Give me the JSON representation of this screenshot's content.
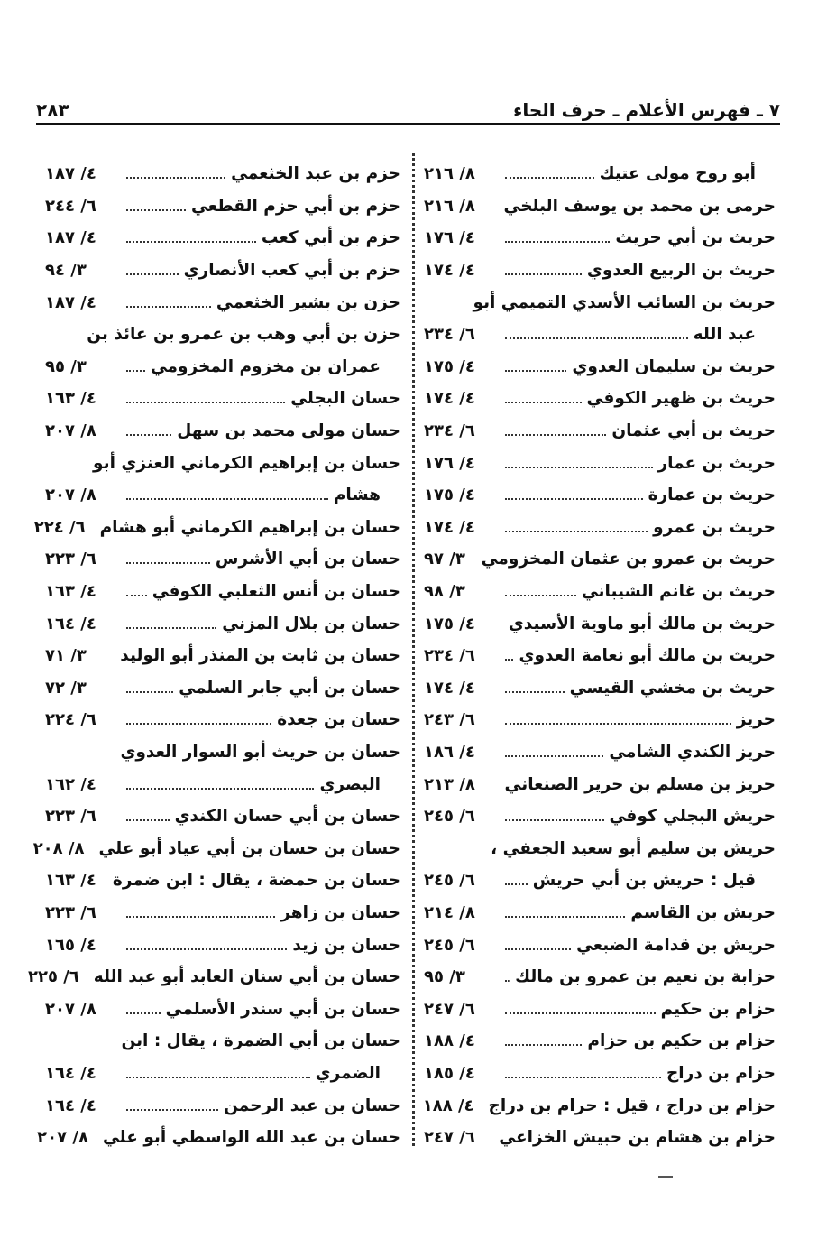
{
  "header": {
    "title": "٧ ـ فهرس الأعلام ـ حرف الحاء",
    "page_number": "٢٨٣"
  },
  "right_column": [
    {
      "t": "أبو روح مولى عتيك",
      "ref": "٨/ ٢١٦",
      "indent": true
    },
    {
      "t": "حرمى بن محمد بن يوسف البلخي",
      "ref": "٨/ ٢١٦"
    },
    {
      "t": "حريث بن أبي حريث",
      "ref": "٤/ ١٧٦"
    },
    {
      "t": "حريث بن الربيع العدوي",
      "ref": "٤/ ١٧٤"
    },
    {
      "t": "حريث بن السائب الأسدي التميمي أبو",
      "ref": ""
    },
    {
      "t": "عبد الله",
      "ref": "٦/ ٢٣٤",
      "indent": true
    },
    {
      "t": "حريث بن سليمان العدوي",
      "ref": "٤/ ١٧٥"
    },
    {
      "t": "حريث بن ظهير الكوفي",
      "ref": "٤/ ١٧٤"
    },
    {
      "t": "حريث بن أبي عثمان",
      "ref": "٦/ ٢٣٤"
    },
    {
      "t": "حريث بن عمار",
      "ref": "٤/ ١٧٦"
    },
    {
      "t": "حريث بن عمارة",
      "ref": "٤/ ١٧٥"
    },
    {
      "t": "حريث بن عمرو",
      "ref": "٤/ ١٧٤"
    },
    {
      "t": "حريث بن عمرو بن عثمان المخزومي",
      "ref": "٣/ ٩٧",
      "nodots": true
    },
    {
      "t": "حريث بن غانم الشيباني",
      "ref": "٣/ ٩٨"
    },
    {
      "t": "حريث بن مالك أبو ماوية الأسيدي",
      "ref": "٤/ ١٧٥"
    },
    {
      "t": "حريث بن مالك أبو نعامة العدوي",
      "ref": "٦/ ٢٣٤"
    },
    {
      "t": "حريث بن مخشي القيسي",
      "ref": "٤/ ١٧٤"
    },
    {
      "t": "حريز",
      "ref": "٦/ ٢٤٣"
    },
    {
      "t": "حريز الكندي الشامي",
      "ref": "٤/ ١٨٦"
    },
    {
      "t": "حريز بن مسلم بن حرير الصنعاني",
      "ref": "٨/ ٢١٣"
    },
    {
      "t": "حريش البجلي كوفي",
      "ref": "٦/ ٢٤٥"
    },
    {
      "t": "حريش بن سليم أبو سعيد الجعفي ،",
      "ref": ""
    },
    {
      "t": "قيل : حريش بن أبي حريش",
      "ref": "٦/ ٢٤٥",
      "indent": true
    },
    {
      "t": "حريش بن القاسم",
      "ref": "٨/ ٢١٤"
    },
    {
      "t": "حريش بن قدامة الضبعي",
      "ref": "٦/ ٢٤٥"
    },
    {
      "t": "حزابة بن نعيم بن عمرو بن مالك",
      "ref": "٣/ ٩٥"
    },
    {
      "t": "حزام بن حكيم",
      "ref": "٦/ ٢٤٧"
    },
    {
      "t": "حزام بن حكيم بن حزام",
      "ref": "٤/ ١٨٨"
    },
    {
      "t": "حزام بن دراج",
      "ref": "٤/ ١٨٥"
    },
    {
      "t": "حزام بن دراج ، قيل : حرام بن دراج",
      "ref": "٤/ ١٨٨",
      "nodots": true
    },
    {
      "t": "حزام بن هشام بن حبيش الخزاعي",
      "ref": "٦/ ٢٤٧"
    }
  ],
  "left_column": [
    {
      "t": "حزم بن عبد الخثعمي",
      "ref": "٤/ ١٨٧"
    },
    {
      "t": "حزم بن أبي حزم القطعي",
      "ref": "٦/ ٢٤٤"
    },
    {
      "t": "حزم بن أبي كعب",
      "ref": "٤/ ١٨٧"
    },
    {
      "t": "حزم بن أبي كعب الأنصاري",
      "ref": "٣/ ٩٤"
    },
    {
      "t": "حزن بن بشير الخثعمي",
      "ref": "٤/ ١٨٧"
    },
    {
      "t": "حزن بن أبي وهب بن عمرو بن عائذ بن",
      "ref": ""
    },
    {
      "t": "عمران بن مخزوم المخزومي",
      "ref": "٣/ ٩٥",
      "indent": true
    },
    {
      "t": "حسان البجلي",
      "ref": "٤/ ١٦٣"
    },
    {
      "t": "حسان مولى محمد بن سهل",
      "ref": "٨/ ٢٠٧"
    },
    {
      "t": "حسان بن إبراهيم الكرماني العنزي أبو",
      "ref": ""
    },
    {
      "t": "هشام",
      "ref": "٨/ ٢٠٧",
      "indent": true
    },
    {
      "t": "حسان بن إبراهيم الكرماني أبو هشام",
      "ref": "٦/ ٢٢٤"
    },
    {
      "t": "حسان بن أبي الأشرس",
      "ref": "٦/ ٢٢٣"
    },
    {
      "t": "حسان بن أنس الثعلبي الكوفي",
      "ref": "٤/ ١٦٣"
    },
    {
      "t": "حسان بن بلال المزني",
      "ref": "٤/ ١٦٤"
    },
    {
      "t": "حسان بن ثابت بن المنذر أبو الوليد",
      "ref": "٣/ ٧١"
    },
    {
      "t": "حسان بن أبي جابر السلمي",
      "ref": "٣/ ٧٢"
    },
    {
      "t": "حسان بن جعدة",
      "ref": "٦/ ٢٢٤"
    },
    {
      "t": "حسان بن حريث أبو السوار العدوي",
      "ref": ""
    },
    {
      "t": "البصري",
      "ref": "٤/ ١٦٢",
      "indent": true
    },
    {
      "t": "حسان بن أبي حسان الكندي",
      "ref": "٦/ ٢٢٣"
    },
    {
      "t": "حسان بن حسان بن أبي عياد أبو علي",
      "ref": "٨/ ٢٠٨"
    },
    {
      "t": "حسان بن حمضة ، يقال : ابن ضمرة",
      "ref": "٤/ ١٦٣"
    },
    {
      "t": "حسان بن زاهر",
      "ref": "٦/ ٢٢٣"
    },
    {
      "t": "حسان بن زيد",
      "ref": "٤/ ١٦٥"
    },
    {
      "t": "حسان بن أبي سنان العابد أبو عبد الله",
      "ref": "٦/ ٢٢٥"
    },
    {
      "t": "حسان بن أبي سندر الأسلمي",
      "ref": "٨/ ٢٠٧"
    },
    {
      "t": "حسان بن أبي الضمرة ، يقال : ابن",
      "ref": ""
    },
    {
      "t": "الضمري",
      "ref": "٤/ ١٦٤",
      "indent": true
    },
    {
      "t": "حسان بن عبد الرحمن",
      "ref": "٤/ ١٦٤"
    },
    {
      "t": "حسان بن عبد الله الواسطي أبو علي",
      "ref": "٨/ ٢٠٧"
    }
  ]
}
